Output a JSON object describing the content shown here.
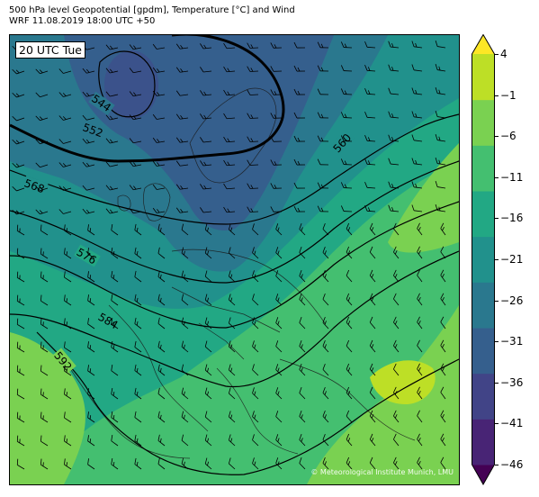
{
  "title": {
    "line1": "500 hPa level Geopotential [gpdm], Temperature [°C] and Wind",
    "line2": "WRF 11.08.2019 18:00 UTC +50"
  },
  "map": {
    "time_label": "20 UTC Tue",
    "copyright": "© Meteorological Institute Munich, LMU",
    "contour_labels": [
      "544",
      "552",
      "560",
      "568",
      "576",
      "584",
      "592"
    ]
  },
  "colorbar": {
    "ticks": [
      "4",
      "−1",
      "−6",
      "−11",
      "−16",
      "−21",
      "−26",
      "−31",
      "−36",
      "−41",
      "−46"
    ],
    "colors": [
      "#440154",
      "#482475",
      "#414487",
      "#355f8d",
      "#2a788e",
      "#21918c",
      "#22a884",
      "#44bf70",
      "#7ad151",
      "#bddf26",
      "#fde725"
    ]
  }
}
